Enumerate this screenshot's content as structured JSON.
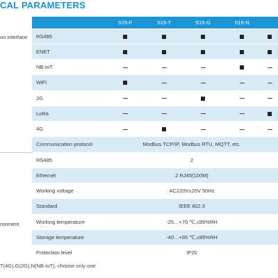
{
  "title": "CAL PARAMETERS",
  "columns": [
    "S15-F",
    "S15-T",
    "S15-G",
    "S15-N",
    ""
  ],
  "categories": {
    "comm": "on interface",
    "env": "ronment"
  },
  "rows": [
    {
      "param": "RS485",
      "cells": [
        "sq",
        "sq",
        "sq",
        "sq",
        "sq"
      ]
    },
    {
      "param": "ENET",
      "cells": [
        "sq",
        "sq",
        "sq",
        "sq",
        "sq"
      ]
    },
    {
      "param": "NB-IoT",
      "cells": [
        "dash",
        "dash",
        "dash",
        "sq",
        "dash"
      ]
    },
    {
      "param": "WiFi",
      "cells": [
        "sq",
        "dash",
        "dash",
        "dash",
        "dash"
      ]
    },
    {
      "param": "2G",
      "cells": [
        "dash",
        "dash",
        "sq",
        "dash",
        "dash"
      ]
    },
    {
      "param": "LoRa",
      "cells": [
        "dash",
        "dash",
        "dash",
        "dash",
        "sq"
      ]
    },
    {
      "param": "4G",
      "cells": [
        "dash",
        "sq",
        "dash",
        "dash",
        "dash"
      ]
    },
    {
      "param": "Communication protocol",
      "merged": "Modbus TCP/IP, Modbus RTU, MQTT, etc."
    },
    {
      "param": "RS485",
      "merged": "2"
    },
    {
      "param": "Ethernet",
      "merged": "2 RJ45(100M)"
    },
    {
      "param": "Working voltage",
      "merged": "AC220V±20V 50Hz"
    },
    {
      "param": "Standard",
      "merged": "IEEE 802.3"
    },
    {
      "param": "Working temperature",
      "merged": "-25…+70 ℃,≤95%RH"
    },
    {
      "param": "Storage temperature",
      "merged": "-40…+85 ℃,≤95%RH"
    },
    {
      "param": "Protection level",
      "merged": "IP20"
    }
  ],
  "footnote": "T(4G),G(2G),N(NB-IoT), choose only one"
}
